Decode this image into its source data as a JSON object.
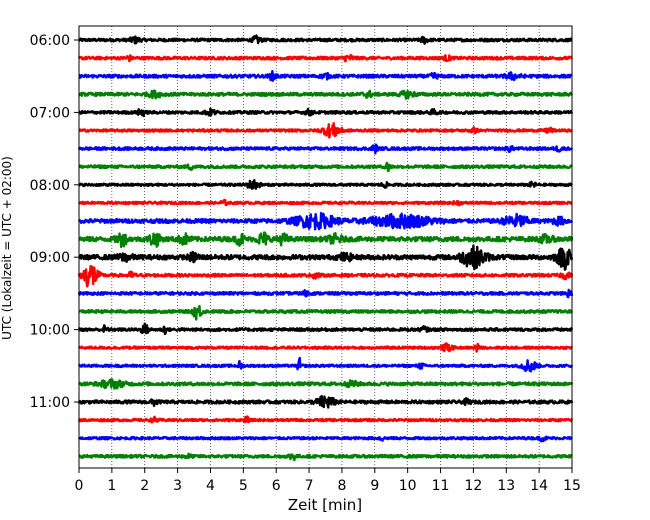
{
  "chart_data": {
    "type": "line",
    "title": "",
    "xlabel": "Zeit  [min]",
    "ylabel": "UTC (Lokalzeit = UTC + 02:00)",
    "xlim": [
      0,
      15
    ],
    "x_ticks": [
      0,
      1,
      2,
      3,
      4,
      5,
      6,
      7,
      8,
      9,
      10,
      11,
      12,
      13,
      14,
      15
    ],
    "x_tick_labels": [
      "0",
      "1",
      "2",
      "3",
      "4",
      "5",
      "6",
      "7",
      "8",
      "9",
      "10",
      "11",
      "12",
      "13",
      "14",
      "15"
    ],
    "y_tick_labels": [
      "06:00",
      "07:00",
      "08:00",
      "09:00",
      "10:00",
      "11:00"
    ],
    "trace_interval_min": 15,
    "colors": [
      "#000000",
      "#ff0000",
      "#0000ff",
      "#008000"
    ],
    "grid": "vertical dotted",
    "legend": "none",
    "series": [
      {
        "start": "06:00",
        "color": "#000000",
        "noise": 0.18,
        "events": [
          {
            "t": 1.7,
            "a": 0.35,
            "w": 0.15
          },
          {
            "t": 5.4,
            "a": 0.45,
            "w": 0.12
          },
          {
            "t": 10.5,
            "a": 0.4,
            "w": 0.1
          }
        ]
      },
      {
        "start": "06:15",
        "color": "#ff0000",
        "noise": 0.18,
        "events": [
          {
            "t": 1.5,
            "a": 0.35,
            "w": 0.08
          },
          {
            "t": 8.2,
            "a": 0.4,
            "w": 0.15
          },
          {
            "t": 11.2,
            "a": 0.3,
            "w": 0.1
          }
        ]
      },
      {
        "start": "06:30",
        "color": "#0000ff",
        "noise": 0.2,
        "events": [
          {
            "t": 5.9,
            "a": 0.5,
            "w": 0.1
          },
          {
            "t": 7.5,
            "a": 0.35,
            "w": 0.1
          },
          {
            "t": 10.8,
            "a": 0.35,
            "w": 0.1
          },
          {
            "t": 13.2,
            "a": 0.4,
            "w": 0.2
          }
        ]
      },
      {
        "start": "06:45",
        "color": "#008000",
        "noise": 0.2,
        "events": [
          {
            "t": 2.3,
            "a": 0.35,
            "w": 0.2
          },
          {
            "t": 8.8,
            "a": 0.35,
            "w": 0.15
          },
          {
            "t": 10.0,
            "a": 0.4,
            "w": 0.2
          }
        ]
      },
      {
        "start": "07:00",
        "color": "#000000",
        "noise": 0.18,
        "events": [
          {
            "t": 1.9,
            "a": 0.5,
            "w": 0.1
          },
          {
            "t": 4.0,
            "a": 0.35,
            "w": 0.15
          },
          {
            "t": 7.0,
            "a": 0.35,
            "w": 0.1
          },
          {
            "t": 10.8,
            "a": 0.3,
            "w": 0.1
          }
        ]
      },
      {
        "start": "07:15",
        "color": "#ff0000",
        "noise": 0.15,
        "events": [
          {
            "t": 7.7,
            "a": 0.9,
            "w": 0.25
          },
          {
            "t": 12.0,
            "a": 0.3,
            "w": 0.1
          },
          {
            "t": 14.3,
            "a": 0.35,
            "w": 0.1
          }
        ]
      },
      {
        "start": "07:30",
        "color": "#0000ff",
        "noise": 0.18,
        "events": [
          {
            "t": 9.0,
            "a": 0.5,
            "w": 0.08
          },
          {
            "t": 13.1,
            "a": 0.3,
            "w": 0.1
          },
          {
            "t": 14.6,
            "a": 0.3,
            "w": 0.1
          }
        ]
      },
      {
        "start": "07:45",
        "color": "#008000",
        "noise": 0.18,
        "events": [
          {
            "t": 9.4,
            "a": 0.6,
            "w": 0.08
          },
          {
            "t": 3.4,
            "a": 0.3,
            "w": 0.1
          }
        ]
      },
      {
        "start": "08:00",
        "color": "#000000",
        "noise": 0.15,
        "events": [
          {
            "t": 5.3,
            "a": 0.6,
            "w": 0.18
          },
          {
            "t": 9.3,
            "a": 0.3,
            "w": 0.1
          },
          {
            "t": 13.8,
            "a": 0.3,
            "w": 0.1
          }
        ]
      },
      {
        "start": "08:15",
        "color": "#ff0000",
        "noise": 0.15,
        "events": [
          {
            "t": 4.4,
            "a": 0.3,
            "w": 0.1
          },
          {
            "t": 11.5,
            "a": 0.25,
            "w": 0.1
          }
        ]
      },
      {
        "start": "08:30",
        "color": "#0000ff",
        "noise": 0.25,
        "events": [
          {
            "t": 7.2,
            "a": 0.9,
            "w": 0.6
          },
          {
            "t": 9.8,
            "a": 0.8,
            "w": 0.9
          },
          {
            "t": 13.3,
            "a": 0.75,
            "w": 0.35
          },
          {
            "t": 14.6,
            "a": 0.4,
            "w": 0.2
          }
        ]
      },
      {
        "start": "08:45",
        "color": "#008000",
        "noise": 0.3,
        "events": [
          {
            "t": 1.3,
            "a": 0.8,
            "w": 0.15
          },
          {
            "t": 2.3,
            "a": 0.9,
            "w": 0.15
          },
          {
            "t": 3.2,
            "a": 0.6,
            "w": 0.15
          },
          {
            "t": 4.9,
            "a": 0.7,
            "w": 0.12
          },
          {
            "t": 5.6,
            "a": 0.8,
            "w": 0.15
          },
          {
            "t": 6.2,
            "a": 0.6,
            "w": 0.15
          },
          {
            "t": 7.8,
            "a": 0.5,
            "w": 0.2
          },
          {
            "t": 14.2,
            "a": 0.4,
            "w": 0.2
          }
        ]
      },
      {
        "start": "09:00",
        "color": "#000000",
        "noise": 0.3,
        "events": [
          {
            "t": 1.4,
            "a": 0.4,
            "w": 0.2
          },
          {
            "t": 3.5,
            "a": 0.5,
            "w": 0.15
          },
          {
            "t": 8.1,
            "a": 0.4,
            "w": 0.2
          },
          {
            "t": 12.0,
            "a": 1.3,
            "w": 0.35
          },
          {
            "t": 14.8,
            "a": 1.4,
            "w": 0.25
          }
        ]
      },
      {
        "start": "09:15",
        "color": "#ff0000",
        "noise": 0.18,
        "events": [
          {
            "t": 0.35,
            "a": 1.8,
            "w": 0.2
          },
          {
            "t": 1.6,
            "a": 0.4,
            "w": 0.1
          },
          {
            "t": 7.2,
            "a": 0.35,
            "w": 0.1
          },
          {
            "t": 14.8,
            "a": 0.35,
            "w": 0.15
          }
        ]
      },
      {
        "start": "09:30",
        "color": "#0000ff",
        "noise": 0.18,
        "events": [
          {
            "t": 6.9,
            "a": 0.35,
            "w": 0.1
          },
          {
            "t": 14.9,
            "a": 0.4,
            "w": 0.1
          }
        ]
      },
      {
        "start": "09:45",
        "color": "#008000",
        "noise": 0.18,
        "events": [
          {
            "t": 3.6,
            "a": 1.0,
            "w": 0.12
          }
        ]
      },
      {
        "start": "10:00",
        "color": "#000000",
        "noise": 0.18,
        "events": [
          {
            "t": 0.8,
            "a": 0.6,
            "w": 0.06
          },
          {
            "t": 2.0,
            "a": 0.7,
            "w": 0.1
          },
          {
            "t": 2.6,
            "a": 0.5,
            "w": 0.06
          },
          {
            "t": 10.5,
            "a": 0.35,
            "w": 0.1
          }
        ]
      },
      {
        "start": "10:15",
        "color": "#ff0000",
        "noise": 0.15,
        "events": [
          {
            "t": 11.2,
            "a": 0.45,
            "w": 0.15
          },
          {
            "t": 12.1,
            "a": 0.6,
            "w": 0.06
          }
        ]
      },
      {
        "start": "10:30",
        "color": "#0000ff",
        "noise": 0.15,
        "events": [
          {
            "t": 4.9,
            "a": 0.6,
            "w": 0.05
          },
          {
            "t": 6.7,
            "a": 1.0,
            "w": 0.05
          },
          {
            "t": 13.7,
            "a": 0.8,
            "w": 0.2
          },
          {
            "t": 10.4,
            "a": 0.3,
            "w": 0.1
          }
        ]
      },
      {
        "start": "10:45",
        "color": "#008000",
        "noise": 0.2,
        "events": [
          {
            "t": 1.0,
            "a": 0.5,
            "w": 0.35
          },
          {
            "t": 8.3,
            "a": 0.3,
            "w": 0.2
          }
        ]
      },
      {
        "start": "11:00",
        "color": "#000000",
        "noise": 0.2,
        "events": [
          {
            "t": 2.3,
            "a": 0.4,
            "w": 0.1
          },
          {
            "t": 7.5,
            "a": 0.8,
            "w": 0.25
          },
          {
            "t": 11.8,
            "a": 0.3,
            "w": 0.1
          }
        ]
      },
      {
        "start": "11:15",
        "color": "#ff0000",
        "noise": 0.15,
        "events": [
          {
            "t": 2.3,
            "a": 0.3,
            "w": 0.1
          },
          {
            "t": 5.1,
            "a": 0.4,
            "w": 0.06
          }
        ]
      },
      {
        "start": "11:30",
        "color": "#0000ff",
        "noise": 0.15,
        "events": [
          {
            "t": 9.2,
            "a": 0.35,
            "w": 0.06
          },
          {
            "t": 14.1,
            "a": 0.3,
            "w": 0.1
          }
        ]
      },
      {
        "start": "11:45",
        "color": "#008000",
        "noise": 0.18,
        "events": [
          {
            "t": 6.5,
            "a": 0.5,
            "w": 0.1
          },
          {
            "t": 3.3,
            "a": 0.25,
            "w": 0.1
          }
        ]
      }
    ]
  }
}
